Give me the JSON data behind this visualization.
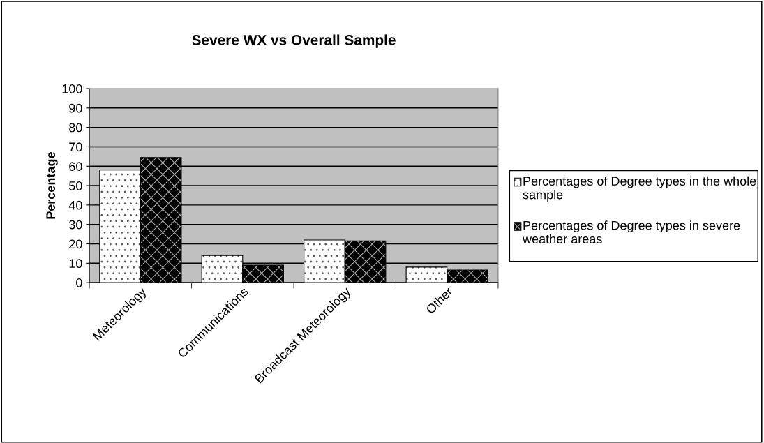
{
  "chart_data": {
    "type": "bar",
    "title": "Severe WX vs Overall Sample",
    "ylabel": "Percentage",
    "categories": [
      "Meteorology",
      "Communications",
      "Broadcast Meteorology",
      "Other"
    ],
    "series": [
      {
        "name": "Percentages of Degree types in the whole sample",
        "color": "#ffffff",
        "values": [
          58,
          14,
          22,
          8
        ]
      },
      {
        "name": "Percentages of Degree types in severe weather areas",
        "color": "#000000",
        "values": [
          64.5,
          9,
          21.5,
          6.5
        ]
      }
    ],
    "ylim": [
      0,
      100
    ],
    "yticks": [
      0,
      10,
      20,
      30,
      40,
      50,
      60,
      70,
      80,
      90,
      100
    ],
    "grid": "y",
    "legend": "right"
  }
}
